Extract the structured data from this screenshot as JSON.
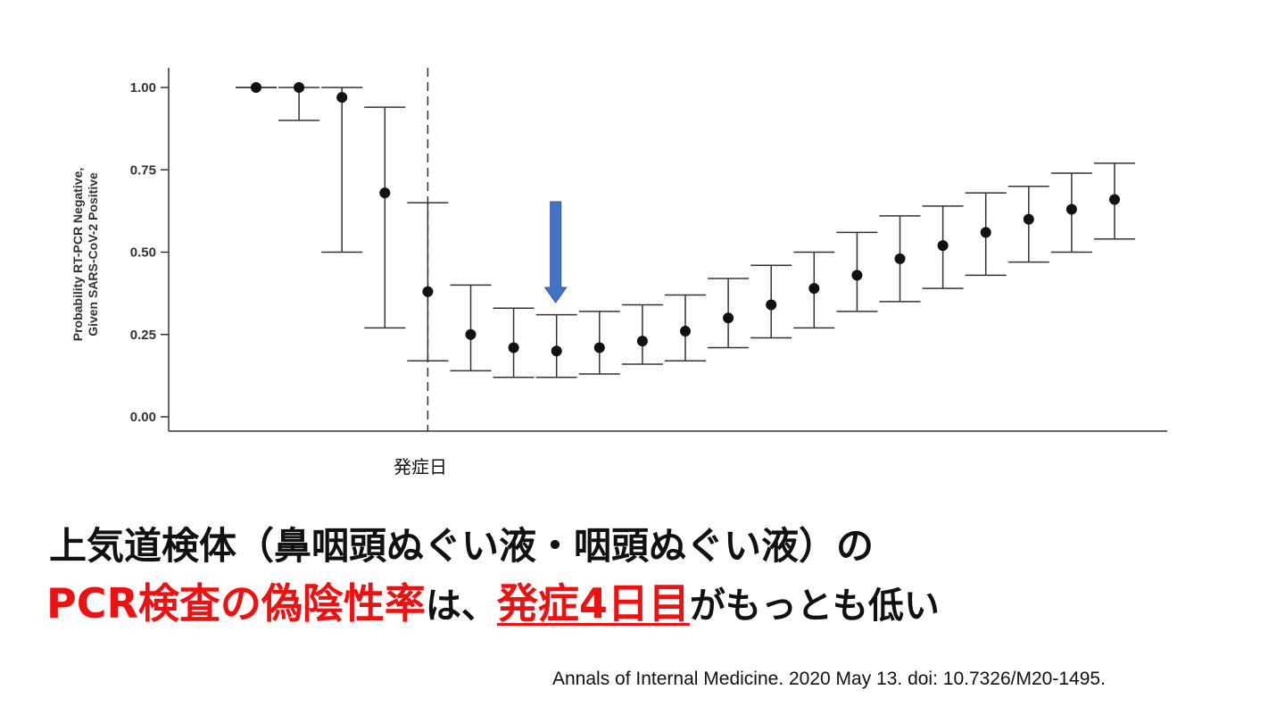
{
  "chart_data": {
    "type": "scatter",
    "ylabel_lines": [
      "Probability RT-PCR Negative,",
      "Given SARS-CoV-2 Positive"
    ],
    "yticks": [
      "1.00",
      "0.75",
      "0.50",
      "0.25",
      "0.00"
    ],
    "ylim": [
      0,
      1
    ],
    "onset_label": "発症日",
    "onset_index": 4,
    "arrow_index": 7,
    "arrow_color": "#4472c4",
    "points": [
      {
        "y": 1.0,
        "lo": 1.0,
        "hi": 1.0
      },
      {
        "y": 1.0,
        "lo": 0.9,
        "hi": 1.0
      },
      {
        "y": 0.97,
        "lo": 0.5,
        "hi": 1.0
      },
      {
        "y": 0.68,
        "lo": 0.27,
        "hi": 0.94
      },
      {
        "y": 0.38,
        "lo": 0.17,
        "hi": 0.65
      },
      {
        "y": 0.25,
        "lo": 0.14,
        "hi": 0.4
      },
      {
        "y": 0.21,
        "lo": 0.12,
        "hi": 0.33
      },
      {
        "y": 0.2,
        "lo": 0.12,
        "hi": 0.31
      },
      {
        "y": 0.21,
        "lo": 0.13,
        "hi": 0.32
      },
      {
        "y": 0.23,
        "lo": 0.16,
        "hi": 0.34
      },
      {
        "y": 0.26,
        "lo": 0.17,
        "hi": 0.37
      },
      {
        "y": 0.3,
        "lo": 0.21,
        "hi": 0.42
      },
      {
        "y": 0.34,
        "lo": 0.24,
        "hi": 0.46
      },
      {
        "y": 0.39,
        "lo": 0.27,
        "hi": 0.5
      },
      {
        "y": 0.43,
        "lo": 0.32,
        "hi": 0.56
      },
      {
        "y": 0.48,
        "lo": 0.35,
        "hi": 0.61
      },
      {
        "y": 0.52,
        "lo": 0.39,
        "hi": 0.64
      },
      {
        "y": 0.56,
        "lo": 0.43,
        "hi": 0.68
      },
      {
        "y": 0.6,
        "lo": 0.47,
        "hi": 0.7
      },
      {
        "y": 0.63,
        "lo": 0.5,
        "hi": 0.74
      },
      {
        "y": 0.66,
        "lo": 0.54,
        "hi": 0.77
      }
    ]
  },
  "headline": {
    "line1": "上気道検体（鼻咽頭ぬぐい液・咽頭ぬぐい液）の",
    "line2": {
      "part1": "PCR検査の偽陰性率",
      "part2": "は、",
      "part3": "発症4日目",
      "part4": "がもっとも低い"
    },
    "red_color": "#ee1111"
  },
  "citation": "Annals of Internal Medicine.  2020 May 13. doi: 10.7326/M20-1495."
}
